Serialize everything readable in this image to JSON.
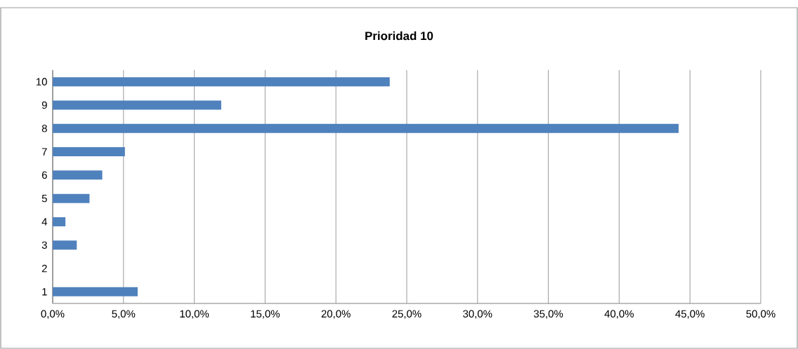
{
  "chart_data": {
    "type": "bar",
    "orientation": "horizontal",
    "title": "Prioridad 10",
    "categories": [
      "10",
      "9",
      "8",
      "7",
      "6",
      "5",
      "4",
      "3",
      "2",
      "1"
    ],
    "values": [
      23.8,
      11.9,
      44.2,
      5.1,
      3.5,
      2.6,
      0.9,
      1.7,
      0,
      6.0
    ],
    "color": "#4f81bd",
    "xlim": [
      0,
      50
    ],
    "xticks": [
      {
        "value": 0,
        "label": "0,0%"
      },
      {
        "value": 5,
        "label": "5,0%"
      },
      {
        "value": 10,
        "label": "10,0%"
      },
      {
        "value": 15,
        "label": "15,0%"
      },
      {
        "value": 20,
        "label": "20,0%"
      },
      {
        "value": 25,
        "label": "25,0%"
      },
      {
        "value": 30,
        "label": "30,0%"
      },
      {
        "value": 35,
        "label": "35,0%"
      },
      {
        "value": 40,
        "label": "40,0%"
      },
      {
        "value": 45,
        "label": "45,0%"
      },
      {
        "value": 50,
        "label": "50,0%"
      }
    ],
    "grid": "x"
  }
}
